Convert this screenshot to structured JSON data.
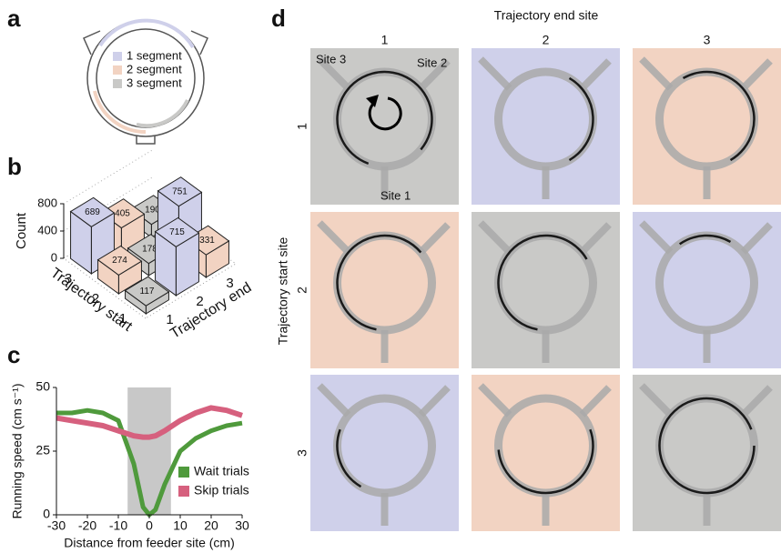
{
  "panel_labels": [
    "a",
    "b",
    "c",
    "d"
  ],
  "diagram": {
    "legend": [
      "1 segment",
      "2 segment",
      "3 segment"
    ],
    "colors": [
      "#cfd0ea",
      "#f2d3c2",
      "#c9c9c7"
    ]
  },
  "chart_data": [
    {
      "type": "bar3d",
      "z_label": "Count",
      "x_label": "Trajectory start",
      "y_label": "Trajectory end",
      "x_categories": [
        "1",
        "2",
        "3"
      ],
      "y_categories": [
        "1",
        "2",
        "3"
      ],
      "values": [
        [
          117,
          715,
          331
        ],
        [
          274,
          178,
          751
        ],
        [
          689,
          405,
          190
        ]
      ],
      "colors": [
        [
          "#c9c9c7",
          "#cfd0ea",
          "#f2d3c2"
        ],
        [
          "#f2d3c2",
          "#c9c9c7",
          "#cfd0ea"
        ],
        [
          "#cfd0ea",
          "#f2d3c2",
          "#c9c9c7"
        ]
      ],
      "zlim": [
        0,
        800
      ],
      "zticks": [
        0,
        400,
        800
      ]
    },
    {
      "type": "line",
      "x_label": "Distance from feeder site (cm)",
      "y_label": "Running speed (cm s⁻¹)",
      "x": [
        -30,
        -25,
        -20,
        -15,
        -10,
        -5,
        -2,
        0,
        2,
        5,
        10,
        15,
        20,
        25,
        30
      ],
      "series": [
        {
          "name": "Wait trials",
          "color": "#4f9a3c",
          "values": [
            40,
            40,
            41,
            40,
            37,
            20,
            3,
            0,
            2,
            12,
            25,
            30,
            33,
            35,
            36
          ]
        },
        {
          "name": "Skip trials",
          "color": "#d6607e",
          "values": [
            38,
            37,
            36,
            35,
            33,
            31,
            30.5,
            30.5,
            31,
            33,
            37,
            40,
            42,
            41,
            39
          ]
        }
      ],
      "xlim": [
        -30,
        30
      ],
      "ylim": [
        0,
        50
      ],
      "xticks": [
        -30,
        -20,
        -10,
        0,
        10,
        20,
        30
      ],
      "yticks": [
        0,
        25,
        50
      ],
      "shade": [
        -7,
        7
      ],
      "shade_color": "#c8c8c8",
      "legend": "lower right"
    }
  ],
  "trajectory_grid": {
    "column_title": "Trajectory end site",
    "row_title": "Trajectory start site",
    "columns": [
      "1",
      "2",
      "3"
    ],
    "rows": [
      "1",
      "2",
      "3"
    ],
    "site_labels": [
      "Site 3",
      "Site 2",
      "Site 1"
    ],
    "cell_colors": [
      [
        "#c9c9c7",
        "#cfd0ea",
        "#f2d3c2"
      ],
      [
        "#f2d3c2",
        "#c9c9c7",
        "#cfd0ea"
      ],
      [
        "#cfd0ea",
        "#f2d3c2",
        "#c9c9c7"
      ]
    ]
  }
}
